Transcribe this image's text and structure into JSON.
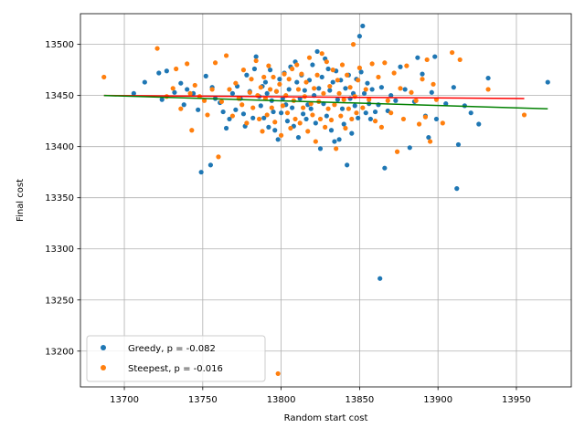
{
  "chart_data": {
    "type": "scatter",
    "xlabel": "Random start cost",
    "ylabel": "Final cost",
    "xlim": [
      13672,
      13985
    ],
    "ylim": [
      13165,
      13530
    ],
    "xticks": [
      13700,
      13750,
      13800,
      13850,
      13900,
      13950
    ],
    "yticks": [
      13200,
      13250,
      13300,
      13350,
      13400,
      13450,
      13500
    ],
    "grid": true,
    "legend_position": "lower-left",
    "series": [
      {
        "name": "Greedy, p = -0.082",
        "color": "#1f77b4",
        "trend": {
          "color": "#008000",
          "x": [
            13687,
            13970
          ],
          "y": [
            13450,
            13437
          ]
        },
        "points": [
          [
            13706,
            13452
          ],
          [
            13713,
            13463
          ],
          [
            13722,
            13472
          ],
          [
            13724,
            13446
          ],
          [
            13727,
            13474
          ],
          [
            13732,
            13453
          ],
          [
            13736,
            13462
          ],
          [
            13738,
            13441
          ],
          [
            13740,
            13456
          ],
          [
            13744,
            13452
          ],
          [
            13747,
            13436
          ],
          [
            13749,
            13375
          ],
          [
            13752,
            13469
          ],
          [
            13755,
            13382
          ],
          [
            13756,
            13458
          ],
          [
            13758,
            13447
          ],
          [
            13761,
            13443
          ],
          [
            13763,
            13434
          ],
          [
            13765,
            13418
          ],
          [
            13767,
            13427
          ],
          [
            13769,
            13452
          ],
          [
            13771,
            13436
          ],
          [
            13772,
            13459
          ],
          [
            13774,
            13447
          ],
          [
            13776,
            13432
          ],
          [
            13777,
            13420
          ],
          [
            13778,
            13470
          ],
          [
            13780,
            13454
          ],
          [
            13782,
            13428
          ],
          [
            13783,
            13476
          ],
          [
            13784,
            13488
          ],
          [
            13786,
            13449
          ],
          [
            13787,
            13440
          ],
          [
            13788,
            13459
          ],
          [
            13789,
            13428
          ],
          [
            13790,
            13463
          ],
          [
            13791,
            13452
          ],
          [
            13792,
            13419
          ],
          [
            13793,
            13475
          ],
          [
            13794,
            13445
          ],
          [
            13795,
            13434
          ],
          [
            13796,
            13416
          ],
          [
            13797,
            13454
          ],
          [
            13798,
            13407
          ],
          [
            13799,
            13466
          ],
          [
            13800,
            13433
          ],
          [
            13801,
            13447
          ],
          [
            13802,
            13472
          ],
          [
            13803,
            13441
          ],
          [
            13804,
            13425
          ],
          [
            13805,
            13456
          ],
          [
            13806,
            13478
          ],
          [
            13807,
            13438
          ],
          [
            13808,
            13420
          ],
          [
            13809,
            13483
          ],
          [
            13810,
            13463
          ],
          [
            13811,
            13409
          ],
          [
            13812,
            13447
          ],
          [
            13813,
            13470
          ],
          [
            13814,
            13432
          ],
          [
            13815,
            13455
          ],
          [
            13816,
            13427
          ],
          [
            13817,
            13441
          ],
          [
            13818,
            13465
          ],
          [
            13819,
            13437
          ],
          [
            13820,
            13480
          ],
          [
            13821,
            13450
          ],
          [
            13822,
            13423
          ],
          [
            13823,
            13493
          ],
          [
            13824,
            13457
          ],
          [
            13825,
            13398
          ],
          [
            13826,
            13468
          ],
          [
            13827,
            13442
          ],
          [
            13828,
            13486
          ],
          [
            13829,
            13430
          ],
          [
            13830,
            13476
          ],
          [
            13831,
            13455
          ],
          [
            13832,
            13416
          ],
          [
            13833,
            13463
          ],
          [
            13834,
            13405
          ],
          [
            13835,
            13474
          ],
          [
            13836,
            13446
          ],
          [
            13837,
            13407
          ],
          [
            13838,
            13465
          ],
          [
            13839,
            13437
          ],
          [
            13840,
            13422
          ],
          [
            13841,
            13457
          ],
          [
            13842,
            13382
          ],
          [
            13843,
            13470
          ],
          [
            13844,
            13447
          ],
          [
            13845,
            13413
          ],
          [
            13846,
            13452
          ],
          [
            13847,
            13440
          ],
          [
            13848,
            13466
          ],
          [
            13849,
            13428
          ],
          [
            13850,
            13508
          ],
          [
            13851,
            13473
          ],
          [
            13852,
            13518
          ],
          [
            13853,
            13452
          ],
          [
            13854,
            13433
          ],
          [
            13855,
            13462
          ],
          [
            13856,
            13442
          ],
          [
            13857,
            13427
          ],
          [
            13858,
            13456
          ],
          [
            13860,
            13434
          ],
          [
            13862,
            13441
          ],
          [
            13863,
            13271
          ],
          [
            13864,
            13458
          ],
          [
            13866,
            13379
          ],
          [
            13868,
            13435
          ],
          [
            13870,
            13450
          ],
          [
            13873,
            13445
          ],
          [
            13876,
            13478
          ],
          [
            13879,
            13456
          ],
          [
            13882,
            13399
          ],
          [
            13885,
            13444
          ],
          [
            13887,
            13487
          ],
          [
            13890,
            13471
          ],
          [
            13892,
            13430
          ],
          [
            13894,
            13409
          ],
          [
            13896,
            13453
          ],
          [
            13898,
            13488
          ],
          [
            13899,
            13427
          ],
          [
            13905,
            13442
          ],
          [
            13910,
            13458
          ],
          [
            13912,
            13359
          ],
          [
            13913,
            13402
          ],
          [
            13917,
            13440
          ],
          [
            13921,
            13433
          ],
          [
            13926,
            13422
          ],
          [
            13932,
            13467
          ],
          [
            13970,
            13463
          ]
        ]
      },
      {
        "name": "Steepest, p = -0.016",
        "color": "#ff7f0e",
        "trend": {
          "color": "#ff0000",
          "x": [
            13687,
            13955
          ],
          "y": [
            13450,
            13447
          ]
        },
        "points": [
          [
            13687,
            13468
          ],
          [
            13721,
            13496
          ],
          [
            13727,
            13449
          ],
          [
            13731,
            13457
          ],
          [
            13733,
            13476
          ],
          [
            13736,
            13437
          ],
          [
            13740,
            13481
          ],
          [
            13742,
            13452
          ],
          [
            13743,
            13416
          ],
          [
            13745,
            13460
          ],
          [
            13748,
            13449
          ],
          [
            13751,
            13445
          ],
          [
            13753,
            13431
          ],
          [
            13756,
            13456
          ],
          [
            13758,
            13482
          ],
          [
            13760,
            13390
          ],
          [
            13762,
            13444
          ],
          [
            13765,
            13489
          ],
          [
            13767,
            13456
          ],
          [
            13769,
            13430
          ],
          [
            13771,
            13462
          ],
          [
            13773,
            13447
          ],
          [
            13775,
            13441
          ],
          [
            13776,
            13475
          ],
          [
            13778,
            13423
          ],
          [
            13780,
            13453
          ],
          [
            13781,
            13466
          ],
          [
            13782,
            13438
          ],
          [
            13784,
            13484
          ],
          [
            13785,
            13450
          ],
          [
            13786,
            13427
          ],
          [
            13787,
            13458
          ],
          [
            13788,
            13415
          ],
          [
            13789,
            13468
          ],
          [
            13790,
            13447
          ],
          [
            13791,
            13431
          ],
          [
            13792,
            13479
          ],
          [
            13793,
            13456
          ],
          [
            13794,
            13438
          ],
          [
            13795,
            13468
          ],
          [
            13796,
            13424
          ],
          [
            13797,
            13454
          ],
          [
            13798,
            13178
          ],
          [
            13799,
            13461
          ],
          [
            13800,
            13411
          ],
          [
            13801,
            13440
          ],
          [
            13802,
            13471
          ],
          [
            13803,
            13450
          ],
          [
            13804,
            13433
          ],
          [
            13805,
            13466
          ],
          [
            13806,
            13418
          ],
          [
            13807,
            13476
          ],
          [
            13808,
            13445
          ],
          [
            13809,
            13427
          ],
          [
            13810,
            13480
          ],
          [
            13811,
            13456
          ],
          [
            13812,
            13423
          ],
          [
            13813,
            13471
          ],
          [
            13814,
            13438
          ],
          [
            13815,
            13449
          ],
          [
            13816,
            13463
          ],
          [
            13817,
            13415
          ],
          [
            13818,
            13487
          ],
          [
            13819,
            13442
          ],
          [
            13820,
            13431
          ],
          [
            13821,
            13457
          ],
          [
            13822,
            13405
          ],
          [
            13823,
            13470
          ],
          [
            13824,
            13444
          ],
          [
            13825,
            13427
          ],
          [
            13826,
            13491
          ],
          [
            13827,
            13452
          ],
          [
            13828,
            13419
          ],
          [
            13829,
            13483
          ],
          [
            13830,
            13437
          ],
          [
            13831,
            13459
          ],
          [
            13832,
            13426
          ],
          [
            13833,
            13475
          ],
          [
            13834,
            13441
          ],
          [
            13835,
            13398
          ],
          [
            13836,
            13465
          ],
          [
            13837,
            13452
          ],
          [
            13838,
            13430
          ],
          [
            13839,
            13480
          ],
          [
            13840,
            13446
          ],
          [
            13841,
            13418
          ],
          [
            13842,
            13470
          ],
          [
            13843,
            13437
          ],
          [
            13844,
            13458
          ],
          [
            13845,
            13427
          ],
          [
            13846,
            13500
          ],
          [
            13847,
            13449
          ],
          [
            13848,
            13433
          ],
          [
            13849,
            13465
          ],
          [
            13850,
            13477
          ],
          [
            13852,
            13438
          ],
          [
            13854,
            13456
          ],
          [
            13856,
            13446
          ],
          [
            13858,
            13481
          ],
          [
            13860,
            13425
          ],
          [
            13862,
            13468
          ],
          [
            13864,
            13419
          ],
          [
            13866,
            13482
          ],
          [
            13868,
            13445
          ],
          [
            13870,
            13433
          ],
          [
            13872,
            13472
          ],
          [
            13874,
            13395
          ],
          [
            13876,
            13457
          ],
          [
            13878,
            13427
          ],
          [
            13880,
            13479
          ],
          [
            13883,
            13453
          ],
          [
            13886,
            13445
          ],
          [
            13888,
            13422
          ],
          [
            13890,
            13466
          ],
          [
            13892,
            13429
          ],
          [
            13893,
            13485
          ],
          [
            13895,
            13405
          ],
          [
            13897,
            13461
          ],
          [
            13899,
            13446
          ],
          [
            13903,
            13423
          ],
          [
            13909,
            13492
          ],
          [
            13914,
            13485
          ],
          [
            13932,
            13456
          ],
          [
            13955,
            13431
          ]
        ]
      }
    ]
  }
}
